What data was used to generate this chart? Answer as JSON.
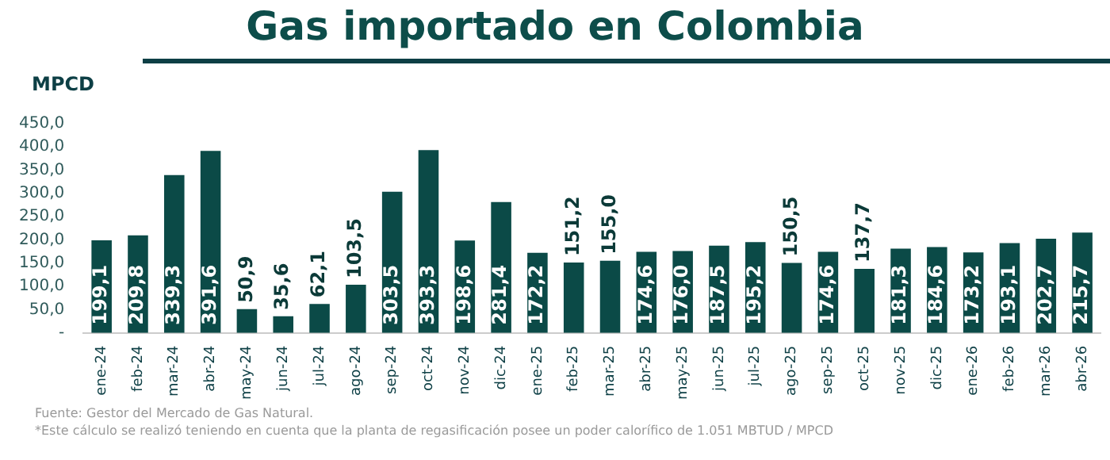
{
  "chart_data": {
    "type": "bar",
    "title": "Gas importado en Colombia",
    "ylabel": "MPCD",
    "categories": [
      "ene-24",
      "feb-24",
      "mar-24",
      "abr-24",
      "may-24",
      "jun-24",
      "jul-24",
      "ago-24",
      "sep-24",
      "oct-24",
      "nov-24",
      "dic-24",
      "ene-25",
      "feb-25",
      "mar-25",
      "abr-25",
      "may-25",
      "jun-25",
      "jul-25",
      "ago-25",
      "sep-25",
      "oct-25",
      "nov-25",
      "dic-25",
      "ene-26",
      "feb-26",
      "mar-26",
      "abr-26"
    ],
    "values": [
      199.1,
      209.8,
      339.3,
      391.6,
      50.9,
      35.6,
      62.1,
      103.5,
      303.5,
      393.3,
      198.6,
      281.4,
      172.2,
      151.2,
      155.0,
      174.6,
      176.0,
      187.5,
      195.2,
      150.5,
      174.6,
      137.7,
      181.3,
      184.6,
      173.2,
      193.1,
      202.7,
      215.7
    ],
    "value_labels": [
      "199,1",
      "209,8",
      "339,3",
      "391,6",
      "50,9",
      "35,6",
      "62,1",
      "103,5",
      "303,5",
      "393,3",
      "198,6",
      "281,4",
      "172,2",
      "151,2",
      "155,0",
      "174,6",
      "176,0",
      "187,5",
      "195,2",
      "150,5",
      "174,6",
      "137,7",
      "181,3",
      "184,6",
      "173,2",
      "193,1",
      "202,7",
      "215,7"
    ],
    "color": "#0b4a47",
    "ylim": [
      0,
      450
    ],
    "yticks": [
      {
        "value": 0,
        "label": "-"
      },
      {
        "value": 50,
        "label": "50,0"
      },
      {
        "value": 100,
        "label": "100,0"
      },
      {
        "value": 150,
        "label": "150,0"
      },
      {
        "value": 200,
        "label": "200,0"
      },
      {
        "value": 250,
        "label": "250,0"
      },
      {
        "value": 300,
        "label": "300,0"
      },
      {
        "value": 350,
        "label": "350,0"
      },
      {
        "value": 400,
        "label": "400,0"
      },
      {
        "value": 450,
        "label": "450,0"
      }
    ],
    "grid": false,
    "legend": false,
    "annotations": [
      "Fuente: Gestor del Mercado de Gas Natural.",
      "*Este cálculo se realizó teniendo en cuenta que la planta de regasificación posee un poder calorífico de 1.051 MBTUD / MPCD"
    ]
  }
}
